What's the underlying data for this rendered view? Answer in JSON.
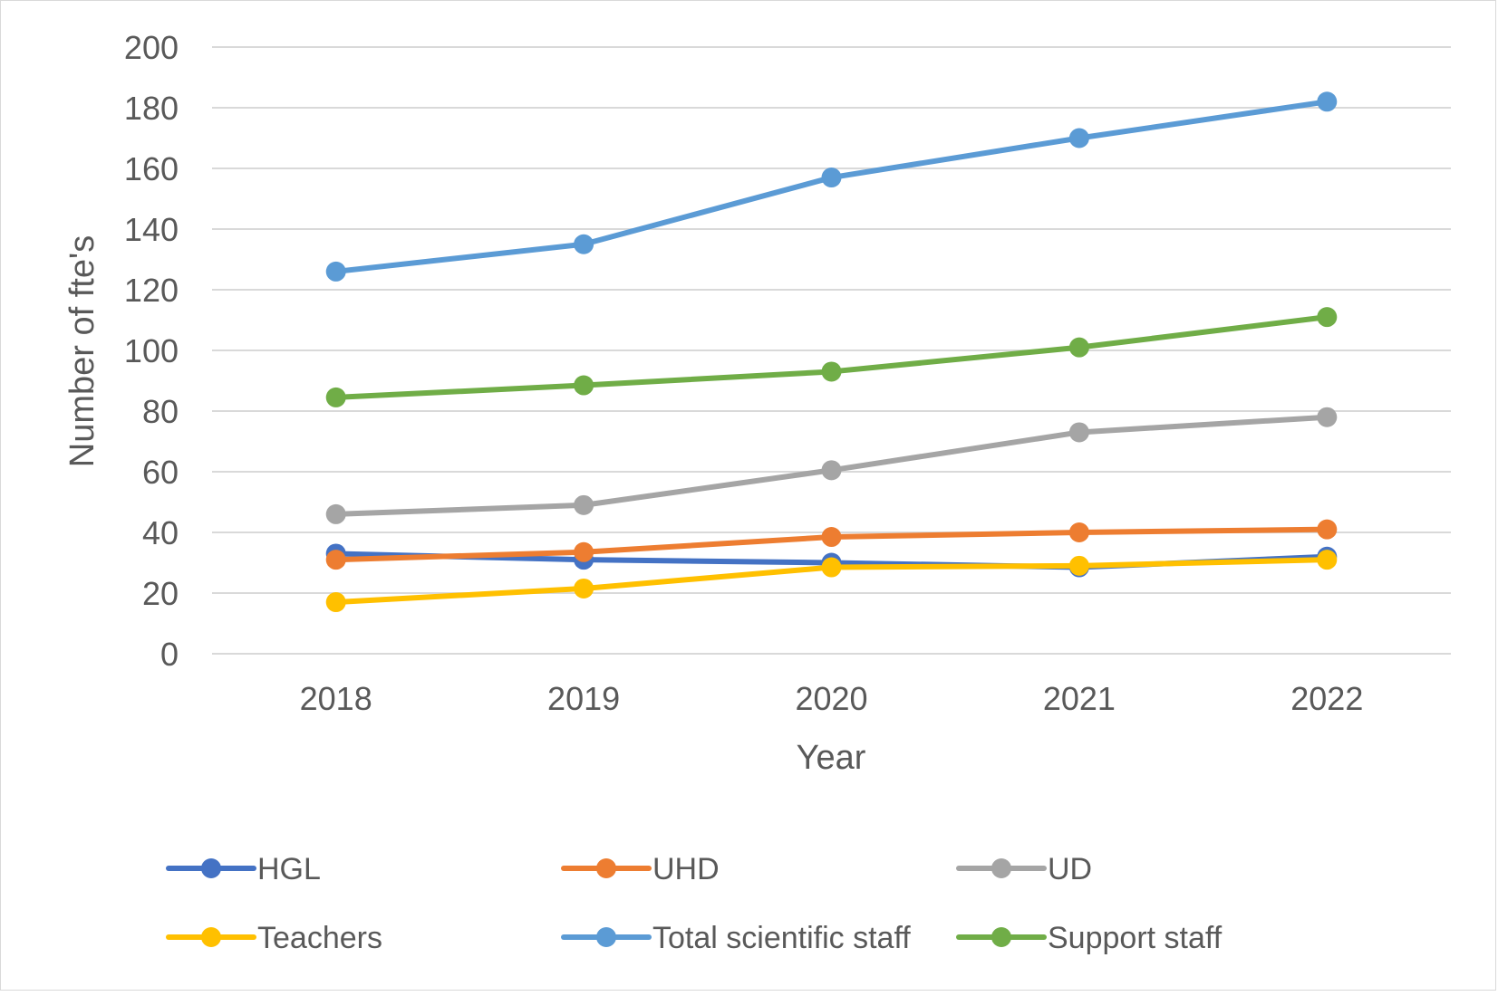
{
  "chart_data": {
    "type": "line",
    "title": "",
    "xlabel": "Year",
    "ylabel": "Number of fte's",
    "categories": [
      "2018",
      "2019",
      "2020",
      "2021",
      "2022"
    ],
    "ylim": [
      0,
      200
    ],
    "yticks": [
      "0",
      "20",
      "40",
      "60",
      "80",
      "100",
      "120",
      "140",
      "160",
      "180",
      "200"
    ],
    "grid": true,
    "legend_position": "bottom",
    "series": [
      {
        "name": "HGL",
        "color": "#4472C4",
        "values": [
          33,
          31,
          30,
          28.5,
          32
        ]
      },
      {
        "name": "UHD",
        "color": "#ED7D31",
        "values": [
          31,
          33.5,
          38.5,
          40,
          41
        ]
      },
      {
        "name": "UD",
        "color": "#A5A5A5",
        "values": [
          46,
          49,
          60.5,
          73,
          78
        ]
      },
      {
        "name": "Teachers",
        "color": "#FFC000",
        "values": [
          17,
          21.5,
          28.5,
          29,
          31
        ]
      },
      {
        "name": "Total scientific staff",
        "color": "#5B9BD5",
        "values": [
          126,
          135,
          157,
          170,
          182
        ]
      },
      {
        "name": "Support staff",
        "color": "#70AD47",
        "values": [
          84.5,
          88.5,
          93,
          101,
          111
        ]
      }
    ]
  }
}
